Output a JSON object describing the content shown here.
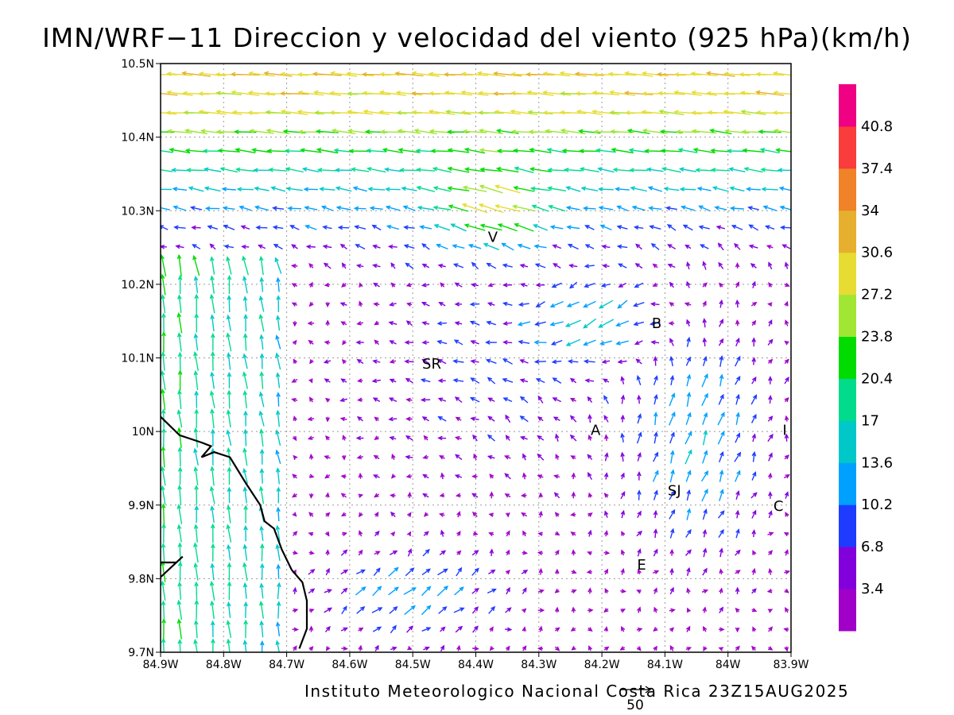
{
  "title": "IMN/WRF−11 Direccion y velocidad del viento (925 hPa)(km/h)",
  "footer": "Instituto Meteorologico Nacional Costa Rica 23Z15AUG2025",
  "reference_vector": {
    "label": "50",
    "value": 50
  },
  "map": {
    "lon_range": [
      -84.9,
      -83.9
    ],
    "lat_range": [
      9.7,
      10.5
    ],
    "x_ticks": [
      {
        "value": -84.9,
        "label": "84.9W"
      },
      {
        "value": -84.8,
        "label": "84.8W"
      },
      {
        "value": -84.7,
        "label": "84.7W"
      },
      {
        "value": -84.6,
        "label": "84.6W"
      },
      {
        "value": -84.5,
        "label": "84.5W"
      },
      {
        "value": -84.4,
        "label": "84.4W"
      },
      {
        "value": -84.3,
        "label": "84.3W"
      },
      {
        "value": -84.2,
        "label": "84.2W"
      },
      {
        "value": -84.1,
        "label": "84.1W"
      },
      {
        "value": -84.0,
        "label": "84W"
      },
      {
        "value": -83.9,
        "label": "83.9W"
      }
    ],
    "y_ticks": [
      {
        "value": 9.7,
        "label": "9.7N"
      },
      {
        "value": 9.8,
        "label": "9.8N"
      },
      {
        "value": 9.9,
        "label": "9.9N"
      },
      {
        "value": 10.0,
        "label": "10N"
      },
      {
        "value": 10.1,
        "label": "10.1N"
      },
      {
        "value": 10.2,
        "label": "10.2N"
      },
      {
        "value": 10.3,
        "label": "10.3N"
      },
      {
        "value": 10.4,
        "label": "10.4N"
      },
      {
        "value": 10.5,
        "label": "10.5N"
      }
    ],
    "grid": true,
    "coastline": [
      [
        [
          -84.9,
          10.02
        ],
        [
          -84.87,
          9.995
        ],
        [
          -84.835,
          9.985
        ],
        [
          -84.82,
          9.98
        ],
        [
          -84.835,
          9.965
        ],
        [
          -84.815,
          9.972
        ],
        [
          -84.79,
          9.965
        ],
        [
          -84.765,
          9.93
        ],
        [
          -84.742,
          9.9
        ],
        [
          -84.735,
          9.878
        ],
        [
          -84.72,
          9.868
        ],
        [
          -84.708,
          9.84
        ],
        [
          -84.692,
          9.812
        ],
        [
          -84.675,
          9.795
        ],
        [
          -84.668,
          9.77
        ],
        [
          -84.668,
          9.732
        ],
        [
          -84.68,
          9.705
        ]
      ],
      [
        [
          -84.9,
          9.822
        ],
        [
          -84.875,
          9.822
        ],
        [
          -84.865,
          9.83
        ],
        [
          -84.9,
          9.802
        ]
      ]
    ],
    "places": [
      {
        "code": "V",
        "lon": -84.373,
        "lat": 10.265
      },
      {
        "code": "B",
        "lon": -84.113,
        "lat": 10.148
      },
      {
        "code": "SR",
        "lon": -84.47,
        "lat": 10.093
      },
      {
        "code": "A",
        "lon": -84.21,
        "lat": 10.003
      },
      {
        "code": "I",
        "lon": -83.91,
        "lat": 10.003
      },
      {
        "code": "SJ",
        "lon": -84.085,
        "lat": 9.921
      },
      {
        "code": "C",
        "lon": -83.92,
        "lat": 9.9
      },
      {
        "code": "E",
        "lon": -84.137,
        "lat": 9.82
      }
    ]
  },
  "colorbar": {
    "levels": [
      {
        "label": "",
        "color": "#a000c8"
      },
      {
        "label": "3.4",
        "color": "#8200dc"
      },
      {
        "label": "6.8",
        "color": "#1e3cff"
      },
      {
        "label": "10.2",
        "color": "#00a0ff"
      },
      {
        "label": "13.6",
        "color": "#00c8c8"
      },
      {
        "label": "17",
        "color": "#00dc8c"
      },
      {
        "label": "20.4",
        "color": "#00dc00"
      },
      {
        "label": "23.8",
        "color": "#a0e632"
      },
      {
        "label": "27.2",
        "color": "#e6dc32"
      },
      {
        "label": "30.6",
        "color": "#e6af2d"
      },
      {
        "label": "34",
        "color": "#f08228"
      },
      {
        "label": "37.4",
        "color": "#fa3c3c"
      },
      {
        "label": "40.8",
        "color": "#f00082"
      }
    ]
  }
}
